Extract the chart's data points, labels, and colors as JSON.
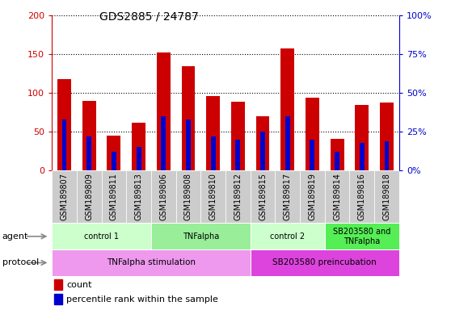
{
  "title": "GDS2885 / 24787",
  "samples": [
    "GSM189807",
    "GSM189809",
    "GSM189811",
    "GSM189813",
    "GSM189806",
    "GSM189808",
    "GSM189810",
    "GSM189812",
    "GSM189815",
    "GSM189817",
    "GSM189819",
    "GSM189814",
    "GSM189816",
    "GSM189818"
  ],
  "count_values": [
    118,
    90,
    45,
    62,
    152,
    135,
    96,
    89,
    70,
    157,
    94,
    41,
    85,
    88
  ],
  "percentile_values": [
    33,
    22,
    12,
    15,
    35,
    33,
    22,
    20,
    25,
    35,
    20,
    12,
    18,
    19
  ],
  "ylim_left": [
    0,
    200
  ],
  "ylim_right": [
    0,
    100
  ],
  "yticks_left": [
    0,
    50,
    100,
    150,
    200
  ],
  "yticks_right": [
    0,
    25,
    50,
    75,
    100
  ],
  "ytick_labels_left": [
    "0",
    "50",
    "100",
    "150",
    "200"
  ],
  "ytick_labels_right": [
    "0%",
    "25%",
    "50%",
    "75%",
    "100%"
  ],
  "bar_color_red": "#cc0000",
  "bar_color_blue": "#0000cc",
  "grid_color": "#000000",
  "left_axis_color": "#cc0000",
  "right_axis_color": "#0000cc",
  "agent_groups": [
    {
      "label": "control 1",
      "start": 0,
      "end": 4,
      "color": "#ccffcc"
    },
    {
      "label": "TNFalpha",
      "start": 4,
      "end": 8,
      "color": "#99ee99"
    },
    {
      "label": "control 2",
      "start": 8,
      "end": 11,
      "color": "#ccffcc"
    },
    {
      "label": "SB203580 and\nTNFalpha",
      "start": 11,
      "end": 14,
      "color": "#55ee55"
    }
  ],
  "protocol_groups": [
    {
      "label": "TNFalpha stimulation",
      "start": 0,
      "end": 8,
      "color": "#ee99ee"
    },
    {
      "label": "SB203580 preincubation",
      "start": 8,
      "end": 14,
      "color": "#dd44dd"
    }
  ],
  "legend_count_label": "count",
  "legend_pct_label": "percentile rank within the sample",
  "agent_label": "agent",
  "protocol_label": "protocol",
  "xticklabel_bg": "#cccccc"
}
